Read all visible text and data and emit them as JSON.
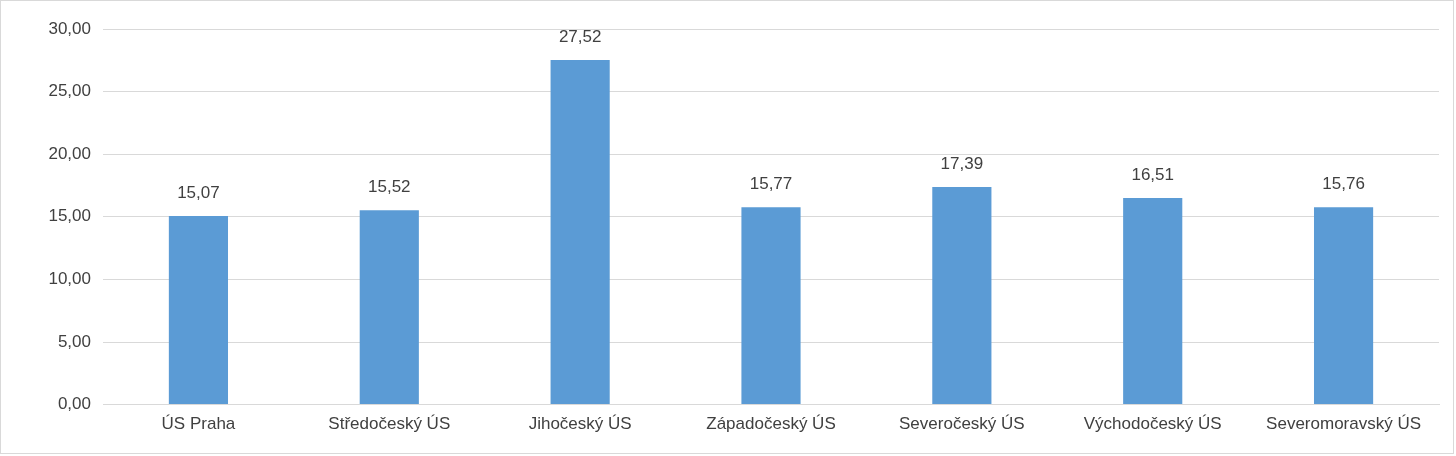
{
  "chart_data": {
    "type": "bar",
    "categories": [
      "ÚS Praha",
      "Středočeský ÚS",
      "Jihočeský ÚS",
      "Západočeský ÚS",
      "Severočeský ÚS",
      "Východočeský ÚS",
      "Severomoravský ÚS"
    ],
    "values": [
      15.07,
      15.52,
      27.52,
      15.77,
      17.39,
      16.51,
      15.76
    ],
    "value_labels": [
      "15,07",
      "15,52",
      "27,52",
      "15,77",
      "17,39",
      "16,51",
      "15,76"
    ],
    "color": "#5b9bd5",
    "ylim": [
      0,
      30
    ],
    "yticks": [
      {
        "value": 0,
        "label": "0,00"
      },
      {
        "value": 5,
        "label": "5,00"
      },
      {
        "value": 10,
        "label": "10,00"
      },
      {
        "value": 15,
        "label": "15,00"
      },
      {
        "value": 20,
        "label": "20,00"
      },
      {
        "value": 25,
        "label": "25,00"
      },
      {
        "value": 30,
        "label": "30,00"
      }
    ],
    "grid": "y",
    "legend": false
  }
}
